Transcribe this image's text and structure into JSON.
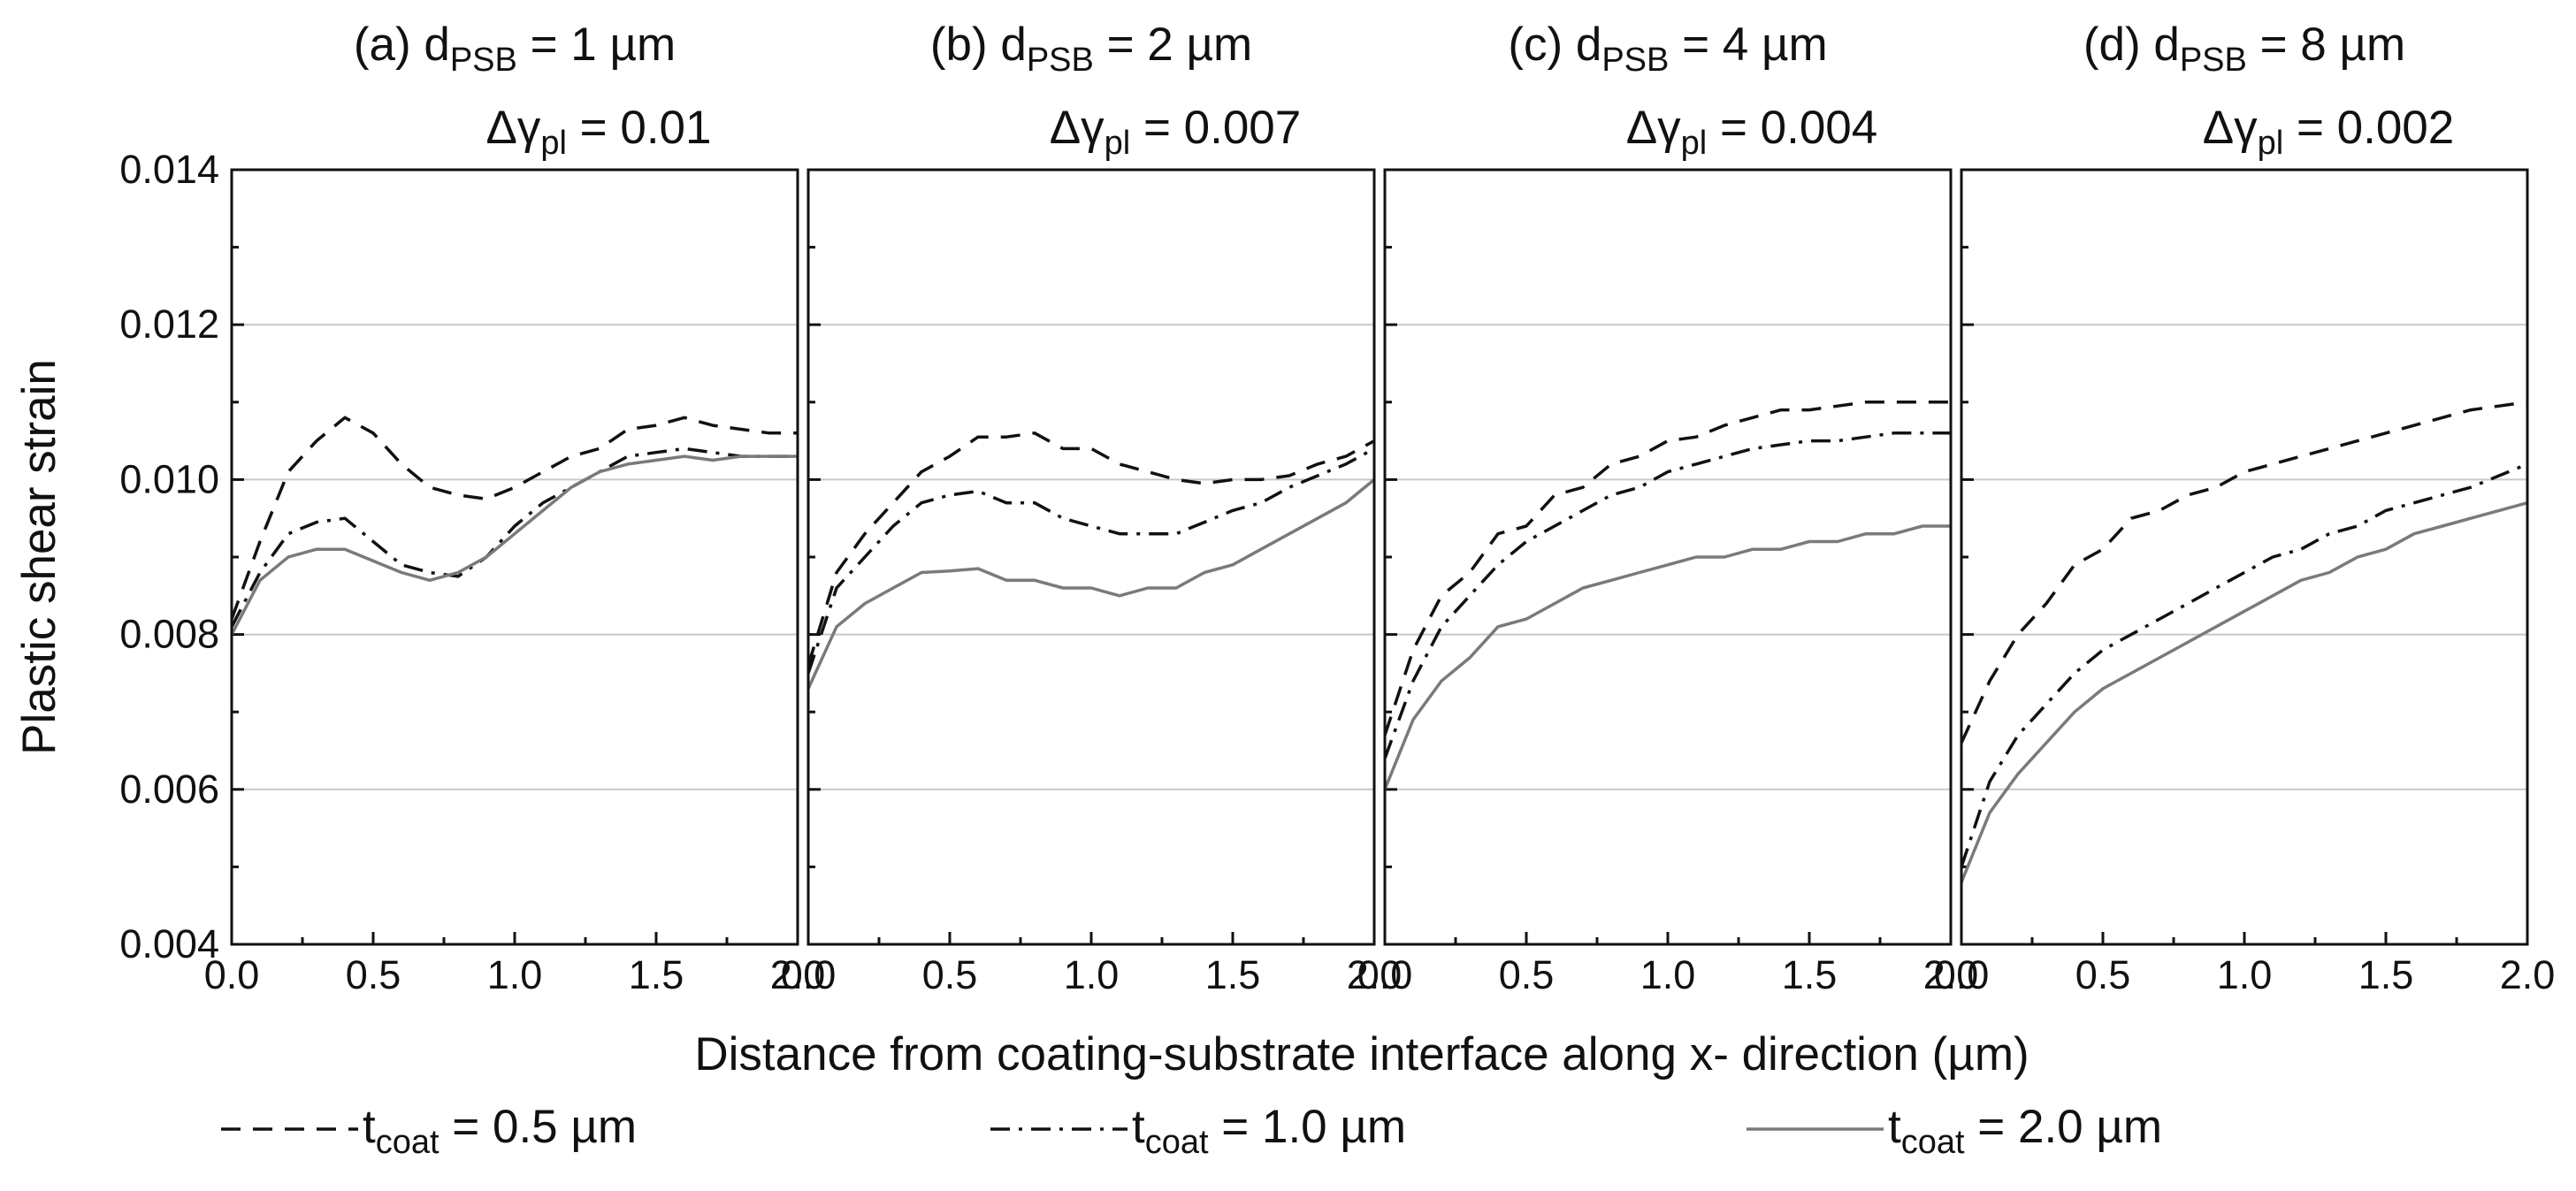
{
  "chart_data": {
    "type": "line",
    "ylabel": "Plastic shear strain",
    "xlabel": "Distance from coating-substrate interface along x- direction (µm)",
    "ylim": [
      0.004,
      0.014
    ],
    "yticks": [
      "0.004",
      "0.006",
      "0.008",
      "0.010",
      "0.012",
      "0.014"
    ],
    "xlim": [
      0.0,
      2.0
    ],
    "xticks": [
      "0.0",
      "0.5",
      "1.0",
      "1.5",
      "2.0"
    ],
    "grid": "horizontal",
    "legend_placement": "bottom",
    "legend": [
      {
        "prefix": "t",
        "sub": "coat",
        "rest": " = 0.5 µm",
        "style": "dashed",
        "color": "#111111"
      },
      {
        "prefix": "t",
        "sub": "coat",
        "rest": " = 1.0 µm",
        "style": "dashdot",
        "color": "#111111"
      },
      {
        "prefix": "t",
        "sub": "coat",
        "rest": " = 2.0 µm",
        "style": "solid",
        "color": "#7a7a7a"
      }
    ],
    "panels": [
      {
        "title_line1": {
          "pre": "(a) d",
          "sub": "PSB",
          "post": " = 1 µm"
        },
        "title_line2": {
          "pre": "Δγ",
          "sub": "pl",
          "post": " = 0.01"
        },
        "x": [
          0.0,
          0.1,
          0.2,
          0.3,
          0.4,
          0.5,
          0.6,
          0.7,
          0.8,
          0.9,
          1.0,
          1.1,
          1.2,
          1.3,
          1.4,
          1.5,
          1.6,
          1.7,
          1.8,
          1.9,
          2.0
        ],
        "series": [
          {
            "legend_index": 0,
            "values": [
              0.0082,
              0.0092,
              0.0101,
              0.0105,
              0.0108,
              0.0106,
              0.0102,
              0.0099,
              0.0098,
              0.00975,
              0.0099,
              0.0101,
              0.0103,
              0.0104,
              0.01065,
              0.0107,
              0.0108,
              0.0107,
              0.01065,
              0.0106,
              0.0106
            ]
          },
          {
            "legend_index": 1,
            "values": [
              0.0081,
              0.0088,
              0.0093,
              0.00945,
              0.0095,
              0.0092,
              0.0089,
              0.0088,
              0.00875,
              0.009,
              0.0094,
              0.0097,
              0.0099,
              0.0101,
              0.0103,
              0.01035,
              0.0104,
              0.01035,
              0.0103,
              0.0103,
              0.0103
            ]
          },
          {
            "legend_index": 2,
            "values": [
              0.008,
              0.0087,
              0.009,
              0.0091,
              0.0091,
              0.00895,
              0.0088,
              0.0087,
              0.0088,
              0.009,
              0.0093,
              0.0096,
              0.0099,
              0.0101,
              0.0102,
              0.01025,
              0.0103,
              0.01025,
              0.0103,
              0.0103,
              0.0103
            ]
          }
        ]
      },
      {
        "title_line1": {
          "pre": "(b) d",
          "sub": "PSB",
          "post": " = 2 µm"
        },
        "title_line2": {
          "pre": "Δγ",
          "sub": "pl",
          "post": " = 0.007"
        },
        "x": [
          0.0,
          0.1,
          0.2,
          0.3,
          0.4,
          0.5,
          0.6,
          0.7,
          0.8,
          0.9,
          1.0,
          1.1,
          1.2,
          1.3,
          1.4,
          1.5,
          1.6,
          1.7,
          1.8,
          1.9,
          2.0
        ],
        "series": [
          {
            "legend_index": 0,
            "values": [
              0.0076,
              0.0088,
              0.0093,
              0.0097,
              0.0101,
              0.0103,
              0.01055,
              0.01055,
              0.0106,
              0.0104,
              0.0104,
              0.0102,
              0.0101,
              0.01,
              0.00995,
              0.01,
              0.01,
              0.01005,
              0.0102,
              0.0103,
              0.0105
            ]
          },
          {
            "legend_index": 1,
            "values": [
              0.0075,
              0.0086,
              0.009,
              0.0094,
              0.0097,
              0.0098,
              0.00985,
              0.0097,
              0.0097,
              0.0095,
              0.0094,
              0.0093,
              0.0093,
              0.0093,
              0.00945,
              0.0096,
              0.0097,
              0.0099,
              0.01005,
              0.0102,
              0.0104
            ]
          },
          {
            "legend_index": 2,
            "values": [
              0.0073,
              0.0081,
              0.0084,
              0.0086,
              0.0088,
              0.00882,
              0.00885,
              0.0087,
              0.0087,
              0.0086,
              0.0086,
              0.0085,
              0.0086,
              0.0086,
              0.0088,
              0.0089,
              0.0091,
              0.0093,
              0.0095,
              0.0097,
              0.01
            ]
          }
        ]
      },
      {
        "title_line1": {
          "pre": "(c) d",
          "sub": "PSB",
          "post": " = 4 µm"
        },
        "title_line2": {
          "pre": "Δγ",
          "sub": "pl",
          "post": " = 0.004"
        },
        "x": [
          0.0,
          0.1,
          0.2,
          0.3,
          0.4,
          0.5,
          0.6,
          0.7,
          0.8,
          0.9,
          1.0,
          1.1,
          1.2,
          1.3,
          1.4,
          1.5,
          1.6,
          1.7,
          1.8,
          1.9,
          2.0
        ],
        "series": [
          {
            "legend_index": 0,
            "values": [
              0.0067,
              0.0078,
              0.0085,
              0.0088,
              0.0093,
              0.0094,
              0.0098,
              0.0099,
              0.0102,
              0.0103,
              0.0105,
              0.01055,
              0.0107,
              0.0108,
              0.0109,
              0.0109,
              0.01095,
              0.011,
              0.011,
              0.011,
              0.011
            ]
          },
          {
            "legend_index": 1,
            "values": [
              0.0064,
              0.0074,
              0.0081,
              0.0085,
              0.0089,
              0.0092,
              0.0094,
              0.0096,
              0.0098,
              0.0099,
              0.0101,
              0.0102,
              0.0103,
              0.0104,
              0.01045,
              0.0105,
              0.0105,
              0.01055,
              0.0106,
              0.0106,
              0.0106
            ]
          },
          {
            "legend_index": 2,
            "values": [
              0.006,
              0.0069,
              0.0074,
              0.0077,
              0.0081,
              0.0082,
              0.0084,
              0.0086,
              0.0087,
              0.0088,
              0.0089,
              0.009,
              0.009,
              0.0091,
              0.0091,
              0.0092,
              0.0092,
              0.0093,
              0.0093,
              0.0094,
              0.0094
            ]
          }
        ]
      },
      {
        "title_line1": {
          "pre": "(d) d",
          "sub": "PSB",
          "post": " = 8 µm"
        },
        "title_line2": {
          "pre": "Δγ",
          "sub": "pl",
          "post": " = 0.002"
        },
        "x": [
          0.0,
          0.1,
          0.2,
          0.3,
          0.4,
          0.5,
          0.6,
          0.7,
          0.8,
          0.9,
          1.0,
          1.1,
          1.2,
          1.3,
          1.4,
          1.5,
          1.6,
          1.7,
          1.8,
          1.9,
          2.0
        ],
        "series": [
          {
            "legend_index": 0,
            "values": [
              0.0066,
              0.0074,
              0.008,
              0.0084,
              0.0089,
              0.0091,
              0.0095,
              0.0096,
              0.0098,
              0.0099,
              0.0101,
              0.0102,
              0.0103,
              0.0104,
              0.0105,
              0.0106,
              0.0107,
              0.0108,
              0.0109,
              0.01095,
              0.011
            ]
          },
          {
            "legend_index": 1,
            "values": [
              0.005,
              0.0061,
              0.0067,
              0.0071,
              0.0075,
              0.0078,
              0.008,
              0.0082,
              0.0084,
              0.0086,
              0.0088,
              0.009,
              0.0091,
              0.0093,
              0.0094,
              0.0096,
              0.0097,
              0.0098,
              0.0099,
              0.01005,
              0.0102
            ]
          },
          {
            "legend_index": 2,
            "values": [
              0.0048,
              0.0057,
              0.0062,
              0.0066,
              0.007,
              0.0073,
              0.0075,
              0.0077,
              0.0079,
              0.0081,
              0.0083,
              0.0085,
              0.0087,
              0.0088,
              0.009,
              0.0091,
              0.0093,
              0.0094,
              0.0095,
              0.0096,
              0.0097
            ]
          }
        ]
      }
    ]
  }
}
